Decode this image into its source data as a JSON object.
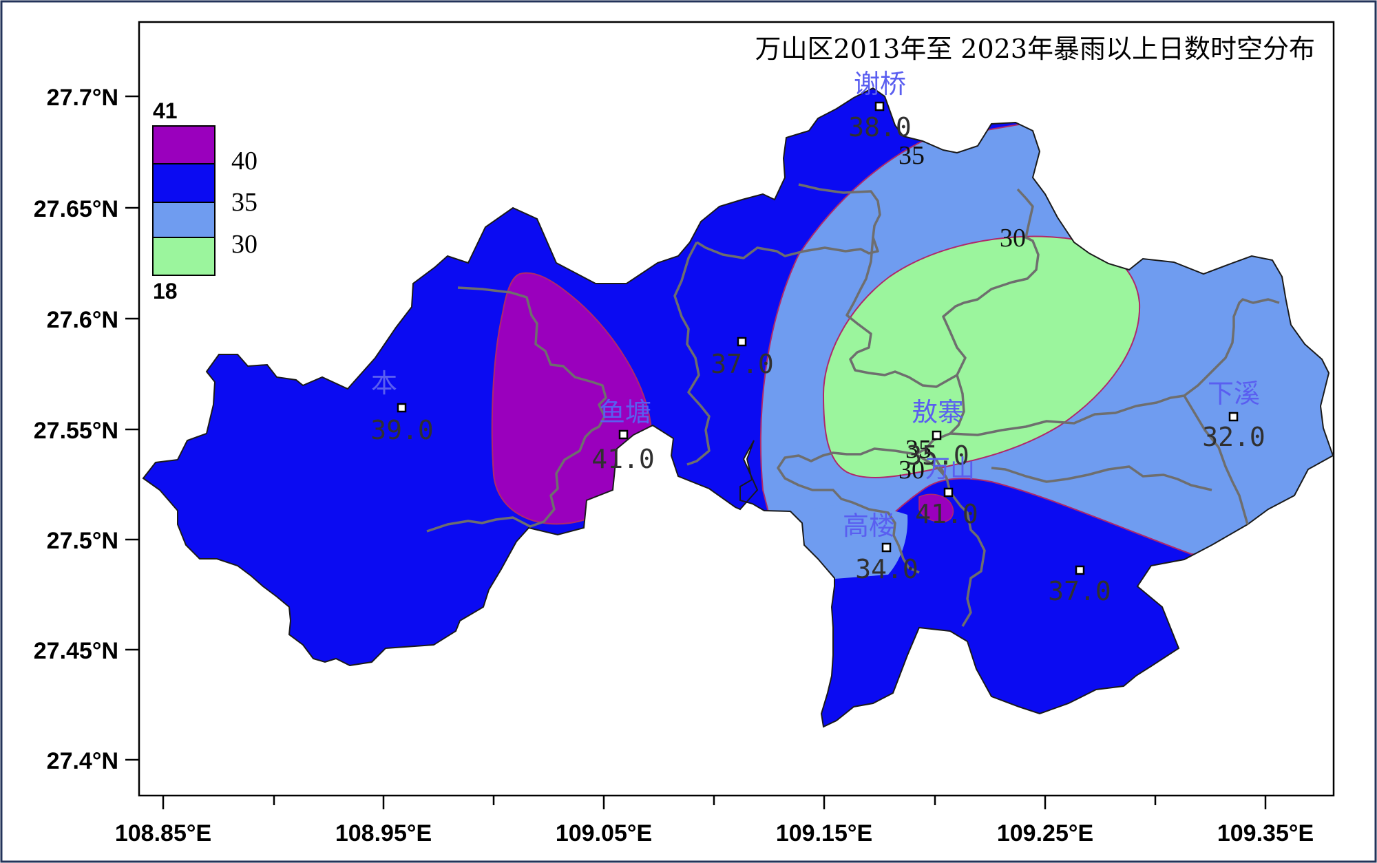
{
  "title": "万山区2013年至 2023年暴雨以上日数时空分布",
  "colors": {
    "level_40_41": "#9a00bd",
    "level_35_40": "#0b0bf2",
    "level_30_35": "#6f9cf0",
    "level_18_30": "#9bf59d",
    "boundary": "#6e6e6e",
    "station_text": "#5a5ef0"
  },
  "legend": {
    "max_label": "41",
    "min_label": "18",
    "levels": [
      {
        "label": "40",
        "color": "#9a00bd"
      },
      {
        "label": "35",
        "color": "#0b0bf2"
      },
      {
        "label": "30",
        "color": "#6f9cf0"
      },
      {
        "label": "",
        "color": "#9bf59d"
      }
    ]
  },
  "y_ticks": [
    "27.7°N",
    "27.65°N",
    "27.6°N",
    "27.55°N",
    "27.5°N",
    "27.45°N",
    "27.4°N"
  ],
  "x_ticks": [
    "108.85°E",
    "108.95°E",
    "109.05°E",
    "109.15°E",
    "109.25°E",
    "109.35°E"
  ],
  "stations": [
    {
      "name": "谢桥",
      "value": "38.0"
    },
    {
      "name": "",
      "value": "37.0"
    },
    {
      "name": "本",
      "value": "39.0"
    },
    {
      "name": "鱼塘",
      "value": "41.0"
    },
    {
      "name": "敖寨",
      "value": "35.0"
    },
    {
      "name": "万山",
      "value": "41.0"
    },
    {
      "name": "高楼",
      "value": "34.0"
    },
    {
      "name": "",
      "value": "37.0"
    },
    {
      "name": "下溪",
      "value": "32.0"
    }
  ],
  "contour_labels": [
    "35",
    "30",
    "35",
    "30"
  ]
}
